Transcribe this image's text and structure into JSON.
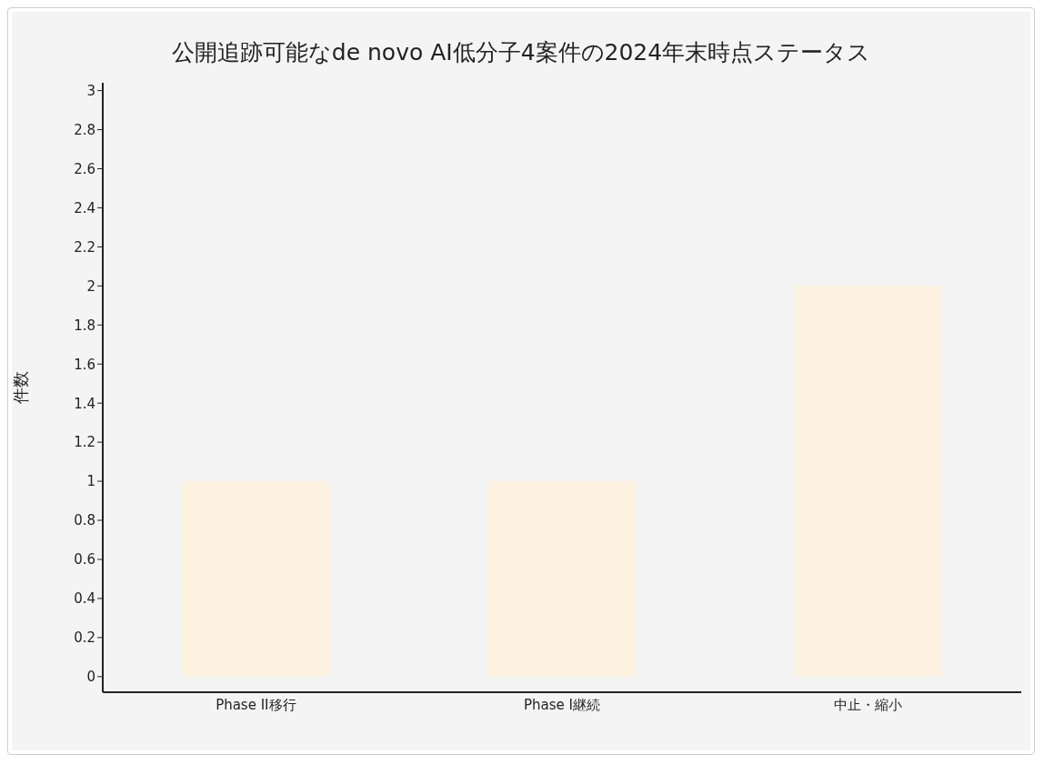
{
  "chart_data": {
    "type": "bar",
    "title": "公開追跡可能なde novo AI低分子4案件の2024年末時点ステータス",
    "ylabel": "件数",
    "categories": [
      "Phase II移行",
      "Phase I継続",
      "中止・縮小"
    ],
    "values": [
      1,
      1,
      2
    ],
    "color": "#fdf2df",
    "ylim": [
      -0.08,
      3.04
    ],
    "yticks": [
      0,
      0.2,
      0.4,
      0.6,
      0.8,
      1,
      1.2,
      1.4,
      1.6,
      1.8,
      2,
      2.2,
      2.4,
      2.6,
      2.8,
      3
    ],
    "grid": false,
    "legend": false
  }
}
